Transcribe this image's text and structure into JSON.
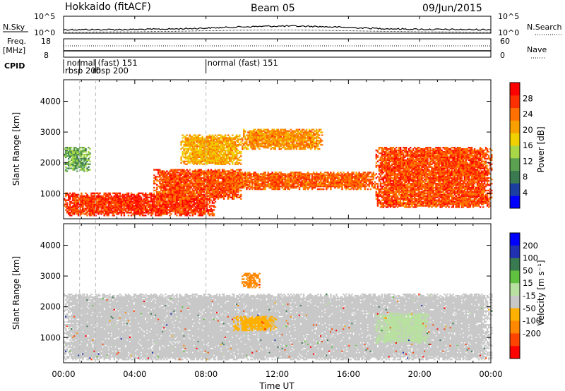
{
  "header": {
    "title": "Hokkaido (fitACF)",
    "beam": "Beam 05",
    "date": "09/Jun/2015"
  },
  "noise": {
    "left_label": "N.Sky",
    "right_label": "N.Search",
    "left_ticks": [
      "10^5",
      "10^0"
    ],
    "right_ticks": [
      "10^5",
      "10^0"
    ]
  },
  "freq": {
    "left_label": "Freq.",
    "left_unit": "[MHz]",
    "left_ticks": [
      "18",
      "8"
    ],
    "right_label": "Nave",
    "right_ticks": [
      "60",
      "0"
    ]
  },
  "cpid": {
    "label": "CPID",
    "entries": [
      {
        "text": "normal (fast) 151",
        "start_hour": 0.1,
        "row": 0
      },
      {
        "text": "rbsp 200",
        "start_hour": 0.0,
        "row": 1
      },
      {
        "text": "rbsp 200",
        "start_hour": 1.55,
        "row": 1
      },
      {
        "text": "normal (fast) 151",
        "start_hour": 8.0,
        "row": 0
      }
    ],
    "boundaries_hours": [
      0.9,
      1.8,
      8.0
    ]
  },
  "colors": {
    "power": [
      "#0000ff",
      "#1a3fa0",
      "#3a7a50",
      "#5aa050",
      "#a8d848",
      "#f0d000",
      "#f8a000",
      "#ff7000",
      "#ff3000",
      "#ff0000"
    ],
    "velocity": [
      "#ff0000",
      "#ff4400",
      "#ff8800",
      "#ffb000",
      "#c8c8c8",
      "#b8e0a0",
      "#60c040",
      "#3a7a50",
      "#2030b0",
      "#0000ff"
    ]
  },
  "chart_data": [
    {
      "type": "heatmap",
      "title": "",
      "xlabel": "Time UT",
      "ylabel": "Slant Range [km]",
      "xlim": [
        0,
        24
      ],
      "ylim": [
        180,
        4700
      ],
      "x_ticks": [
        "00:00",
        "04:00",
        "08:00",
        "12:00",
        "16:00",
        "20:00",
        "00:00"
      ],
      "y_ticks": [
        1000,
        2000,
        3000,
        4000
      ],
      "colorbar": {
        "label": "Power [dB]",
        "range": [
          0,
          32
        ],
        "ticks": [
          4,
          8,
          12,
          16,
          20,
          24,
          28
        ]
      },
      "echo_bands": [
        {
          "t0": 0,
          "t1": 8.5,
          "r0": 250,
          "r1": 1000,
          "power": 27
        },
        {
          "t0": 5,
          "t1": 10,
          "r0": 800,
          "r1": 1800,
          "power": 26
        },
        {
          "t0": 9,
          "t1": 17.5,
          "r0": 1100,
          "r1": 1700,
          "power": 25
        },
        {
          "t0": 10,
          "t1": 14.5,
          "r0": 2400,
          "r1": 3100,
          "power": 22
        },
        {
          "t0": 6.5,
          "t1": 10,
          "r0": 1900,
          "r1": 2900,
          "power": 20
        },
        {
          "t0": 17.5,
          "t1": 24,
          "r0": 500,
          "r1": 2500,
          "power": 26
        },
        {
          "t0": 0,
          "t1": 1.5,
          "r0": 1700,
          "r1": 2500,
          "power": 12
        }
      ]
    },
    {
      "type": "heatmap",
      "title": "",
      "xlabel": "Time UT",
      "ylabel": "Slant Range [km]",
      "xlim": [
        0,
        24
      ],
      "ylim": [
        180,
        4700
      ],
      "x_ticks": [
        "00:00",
        "04:00",
        "08:00",
        "12:00",
        "16:00",
        "20:00",
        "00:00"
      ],
      "y_ticks": [
        1000,
        2000,
        3000,
        4000
      ],
      "colorbar": {
        "label": "Velocity [m s⁻¹]",
        "ticks": [
          "200",
          "100",
          "50",
          "15",
          "-15",
          "-50",
          "-100",
          "-200"
        ]
      },
      "echo_bands": [
        {
          "t0": 0,
          "t1": 24,
          "r0": 250,
          "r1": 2400,
          "velocity": 0
        },
        {
          "t0": 9.5,
          "t1": 12,
          "r0": 1200,
          "r1": 1700,
          "velocity": -40
        },
        {
          "t0": 10,
          "t1": 11,
          "r0": 2600,
          "r1": 3100,
          "velocity": -60
        },
        {
          "t0": 17.5,
          "t1": 20.5,
          "r0": 800,
          "r1": 1800,
          "velocity": 30
        }
      ]
    }
  ]
}
